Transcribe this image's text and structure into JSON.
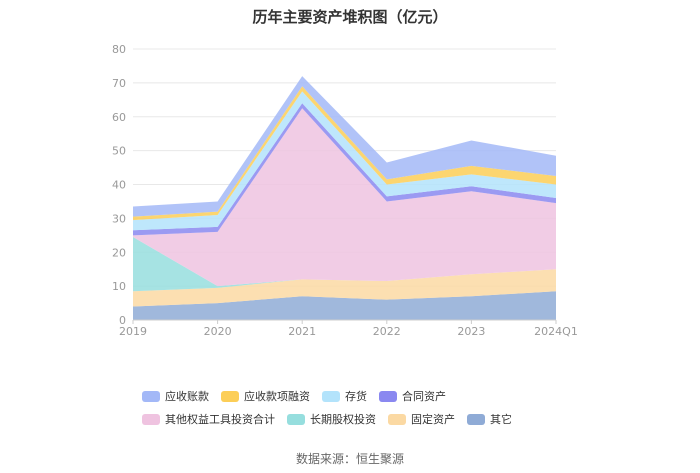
{
  "chart_data": {
    "type": "area",
    "title": "历年主要资产堆积图（亿元）",
    "categories": [
      "2019",
      "2020",
      "2021",
      "2022",
      "2023",
      "2024Q1"
    ],
    "ylim": [
      0,
      80
    ],
    "yticks": [
      0,
      10,
      20,
      30,
      40,
      50,
      60,
      70,
      80
    ],
    "stacked": true,
    "grid": true,
    "legend_position": "bottom",
    "series": [
      {
        "name": "其它",
        "color": "#8fabd6",
        "values": [
          4,
          5,
          7,
          6,
          7,
          8.5
        ]
      },
      {
        "name": "固定资产",
        "color": "#fbd9a3",
        "values": [
          4.5,
          4.5,
          5,
          5.5,
          6.5,
          6.5
        ]
      },
      {
        "name": "长期股权投资",
        "color": "#96dede",
        "values": [
          16,
          0.5,
          0,
          0,
          0,
          0
        ]
      },
      {
        "name": "其他权益工具投资合计",
        "color": "#efc3e0",
        "values": [
          0.5,
          16,
          50.5,
          23.5,
          24.5,
          19.5
        ]
      },
      {
        "name": "合同资产",
        "color": "#8a88f0",
        "values": [
          1.5,
          1.5,
          1.5,
          1.5,
          1.5,
          1.5
        ]
      },
      {
        "name": "存货",
        "color": "#b3e3fb",
        "values": [
          3,
          3.5,
          3.5,
          3.5,
          3.5,
          4
        ]
      },
      {
        "name": "应收款项融资",
        "color": "#fcce57",
        "values": [
          1,
          1,
          1.5,
          1.5,
          2.5,
          2.5
        ]
      },
      {
        "name": "应收账款",
        "color": "#a3b8f7",
        "values": [
          3,
          3,
          3,
          5,
          7.5,
          6
        ]
      }
    ],
    "legend_order": [
      "应收账款",
      "应收款项融资",
      "存货",
      "合同资产",
      "其他权益工具投资合计",
      "长期股权投资",
      "固定资产",
      "其它"
    ]
  },
  "source": "数据来源：恒生聚源"
}
